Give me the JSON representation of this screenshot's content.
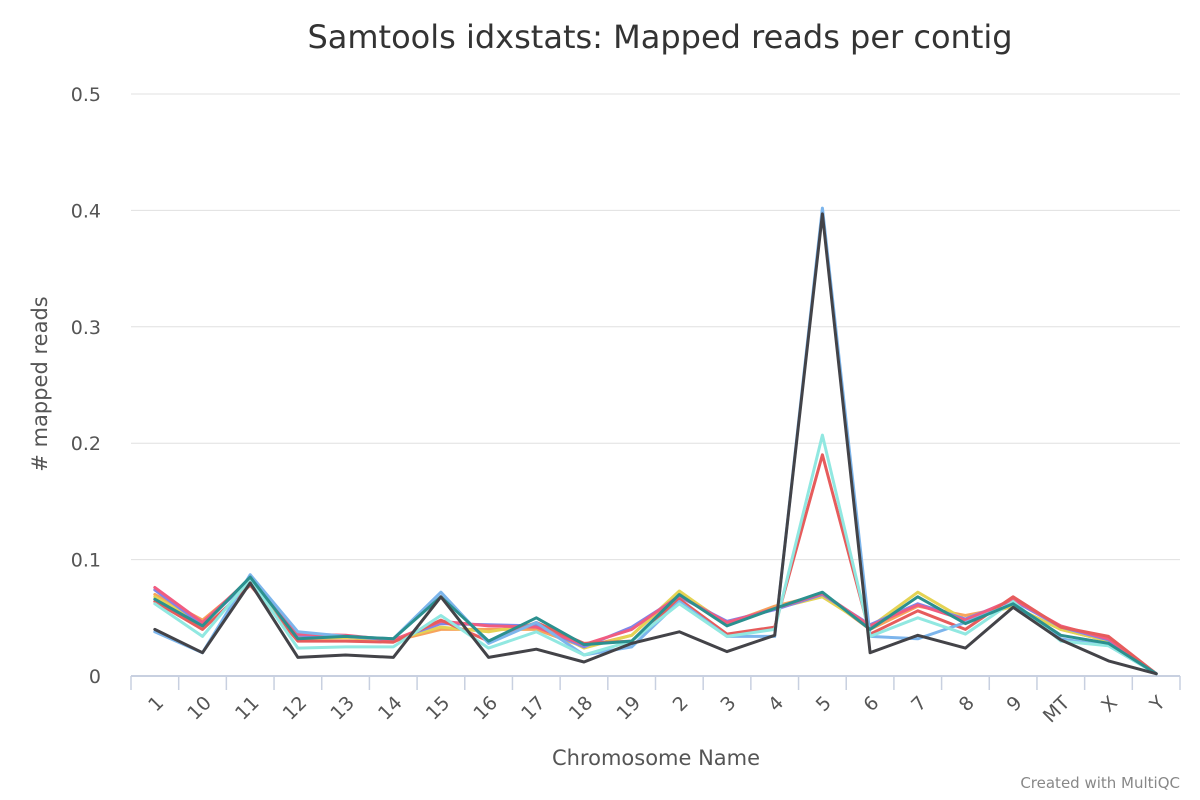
{
  "chart_data": {
    "type": "line",
    "title": "Samtools idxstats: Mapped reads per contig",
    "xlabel": "Chromosome Name",
    "ylabel": "# mapped reads",
    "credit": "Created with MultiQC",
    "ylim": [
      0,
      0.5
    ],
    "yticks": [
      0,
      0.1,
      0.2,
      0.3,
      0.4,
      0.5
    ],
    "ytick_labels": [
      "0",
      "0.1",
      "0.2",
      "0.3",
      "0.4",
      "0.5"
    ],
    "grid": true,
    "categories": [
      "1",
      "10",
      "11",
      "12",
      "13",
      "14",
      "15",
      "16",
      "17",
      "18",
      "19",
      "2",
      "3",
      "4",
      "5",
      "6",
      "7",
      "8",
      "9",
      "MT",
      "X",
      "Y"
    ],
    "series": [
      {
        "color": "#f7a35c",
        "values": [
          0.07,
          0.048,
          0.082,
          0.033,
          0.033,
          0.03,
          0.04,
          0.04,
          0.04,
          0.025,
          0.035,
          0.072,
          0.045,
          0.06,
          0.07,
          0.04,
          0.06,
          0.052,
          0.06,
          0.04,
          0.03,
          0.002
        ]
      },
      {
        "color": "#e4d354",
        "values": [
          0.068,
          0.045,
          0.083,
          0.032,
          0.033,
          0.031,
          0.042,
          0.038,
          0.045,
          0.024,
          0.035,
          0.073,
          0.044,
          0.058,
          0.068,
          0.042,
          0.072,
          0.048,
          0.06,
          0.04,
          0.03,
          0.002
        ]
      },
      {
        "color": "#8085e9",
        "values": [
          0.074,
          0.044,
          0.083,
          0.035,
          0.034,
          0.031,
          0.045,
          0.044,
          0.043,
          0.025,
          0.042,
          0.068,
          0.047,
          0.057,
          0.07,
          0.044,
          0.062,
          0.049,
          0.065,
          0.042,
          0.031,
          0.002
        ]
      },
      {
        "color": "#f15c80",
        "values": [
          0.076,
          0.046,
          0.084,
          0.036,
          0.035,
          0.031,
          0.047,
          0.043,
          0.042,
          0.027,
          0.04,
          0.069,
          0.046,
          0.058,
          0.071,
          0.043,
          0.061,
          0.048,
          0.066,
          0.043,
          0.032,
          0.002
        ]
      },
      {
        "color": "#e65c5c",
        "values": [
          0.064,
          0.04,
          0.078,
          0.03,
          0.03,
          0.029,
          0.048,
          0.03,
          0.046,
          0.028,
          0.03,
          0.066,
          0.036,
          0.042,
          0.19,
          0.036,
          0.056,
          0.04,
          0.068,
          0.042,
          0.034,
          0.002
        ]
      },
      {
        "color": "#7cb5ec",
        "values": [
          0.038,
          0.02,
          0.087,
          0.038,
          0.034,
          0.032,
          0.072,
          0.028,
          0.046,
          0.018,
          0.025,
          0.064,
          0.034,
          0.034,
          0.402,
          0.034,
          0.032,
          0.046,
          0.062,
          0.032,
          0.026,
          0.002
        ]
      },
      {
        "color": "#91e8e1",
        "values": [
          0.062,
          0.034,
          0.083,
          0.024,
          0.025,
          0.025,
          0.052,
          0.024,
          0.038,
          0.018,
          0.03,
          0.062,
          0.034,
          0.04,
          0.207,
          0.034,
          0.05,
          0.036,
          0.064,
          0.03,
          0.026,
          0.002
        ]
      },
      {
        "color": "#2b908f",
        "values": [
          0.066,
          0.043,
          0.085,
          0.032,
          0.034,
          0.032,
          0.068,
          0.03,
          0.05,
          0.027,
          0.03,
          0.07,
          0.043,
          0.058,
          0.072,
          0.04,
          0.068,
          0.045,
          0.062,
          0.035,
          0.028,
          0.002
        ]
      },
      {
        "color": "#434348",
        "values": [
          0.04,
          0.02,
          0.08,
          0.016,
          0.018,
          0.016,
          0.068,
          0.016,
          0.023,
          0.012,
          0.028,
          0.038,
          0.021,
          0.035,
          0.397,
          0.02,
          0.035,
          0.024,
          0.059,
          0.031,
          0.013,
          0.002
        ]
      }
    ]
  }
}
